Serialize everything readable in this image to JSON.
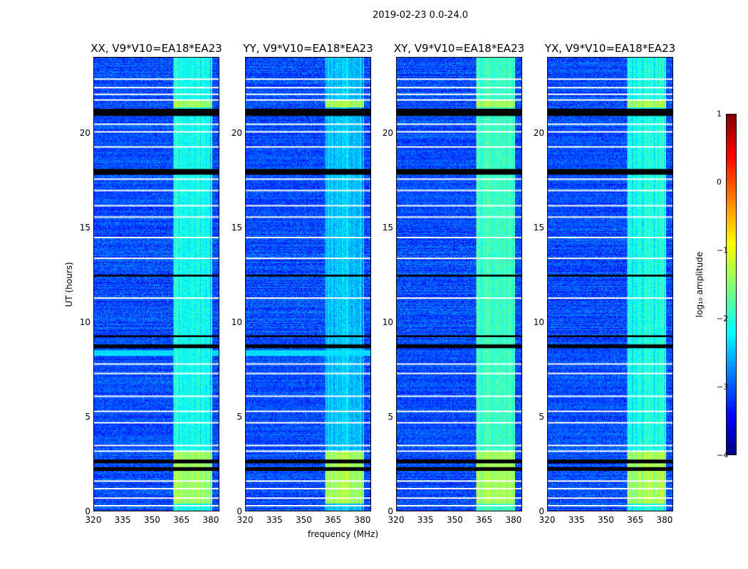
{
  "suptitle": "2019-02-23 0.0-24.0",
  "chart_data": {
    "type": "heatmap",
    "title": "2019-02-23 0.0-24.0",
    "xlabel": "frequency (MHz)",
    "ylabel": "UT (hours)",
    "xlim": [
      320,
      384.4
    ],
    "ylim": [
      0,
      24
    ],
    "xticks": [
      "320",
      "335",
      "350",
      "365",
      "380"
    ],
    "yticks": [
      "0",
      "5",
      "10",
      "15",
      "20"
    ],
    "panels": [
      {
        "title": "XX, V9*V10=EA18*EA23",
        "band_boost": 1.0,
        "row_hot": true
      },
      {
        "title": "YY, V9*V10=EA18*EA23",
        "band_boost": 1.2,
        "row_hot": true
      },
      {
        "title": "XY, V9*V10=EA18*EA23",
        "band_boost": 0.9,
        "row_hot": false
      },
      {
        "title": "YX, V9*V10=EA18*EA23",
        "band_boost": 1.0,
        "row_hot": false
      }
    ],
    "background_log_amplitude": -3.0,
    "rfi_band_mhz": [
      361,
      381
    ],
    "rfi_band_log_amplitude": -2.0,
    "strong_rfi_hours": [
      [
        0.4,
        3.2
      ],
      [
        21.4,
        21.8
      ]
    ],
    "broadband_rfi_hours": [
      [
        8.2,
        8.5
      ]
    ],
    "flagged_hours_white": [
      0.3,
      0.7,
      1.2,
      1.6,
      3.2,
      3.5,
      4.7,
      5.3,
      6.1,
      7.3,
      7.8,
      11.3,
      13.4,
      14.5,
      15.6,
      16.2,
      17.0,
      17.6,
      19.3,
      20.1,
      20.5,
      21.8,
      22.1,
      22.45,
      22.9
    ],
    "flagged_hours_black": [
      [
        2.1,
        2.3
      ],
      [
        2.5,
        2.7
      ],
      [
        8.6,
        8.8
      ],
      [
        9.2,
        9.3
      ],
      [
        12.4,
        12.5
      ],
      [
        17.8,
        18.1
      ],
      [
        20.9,
        21.3
      ]
    ],
    "colorbar": {
      "label": "log₁₀ amplitude",
      "range": [
        -4,
        1
      ],
      "ticks": [
        "1",
        "0",
        "−1",
        "−2",
        "−3",
        "−4"
      ],
      "colormap": "jet"
    }
  }
}
